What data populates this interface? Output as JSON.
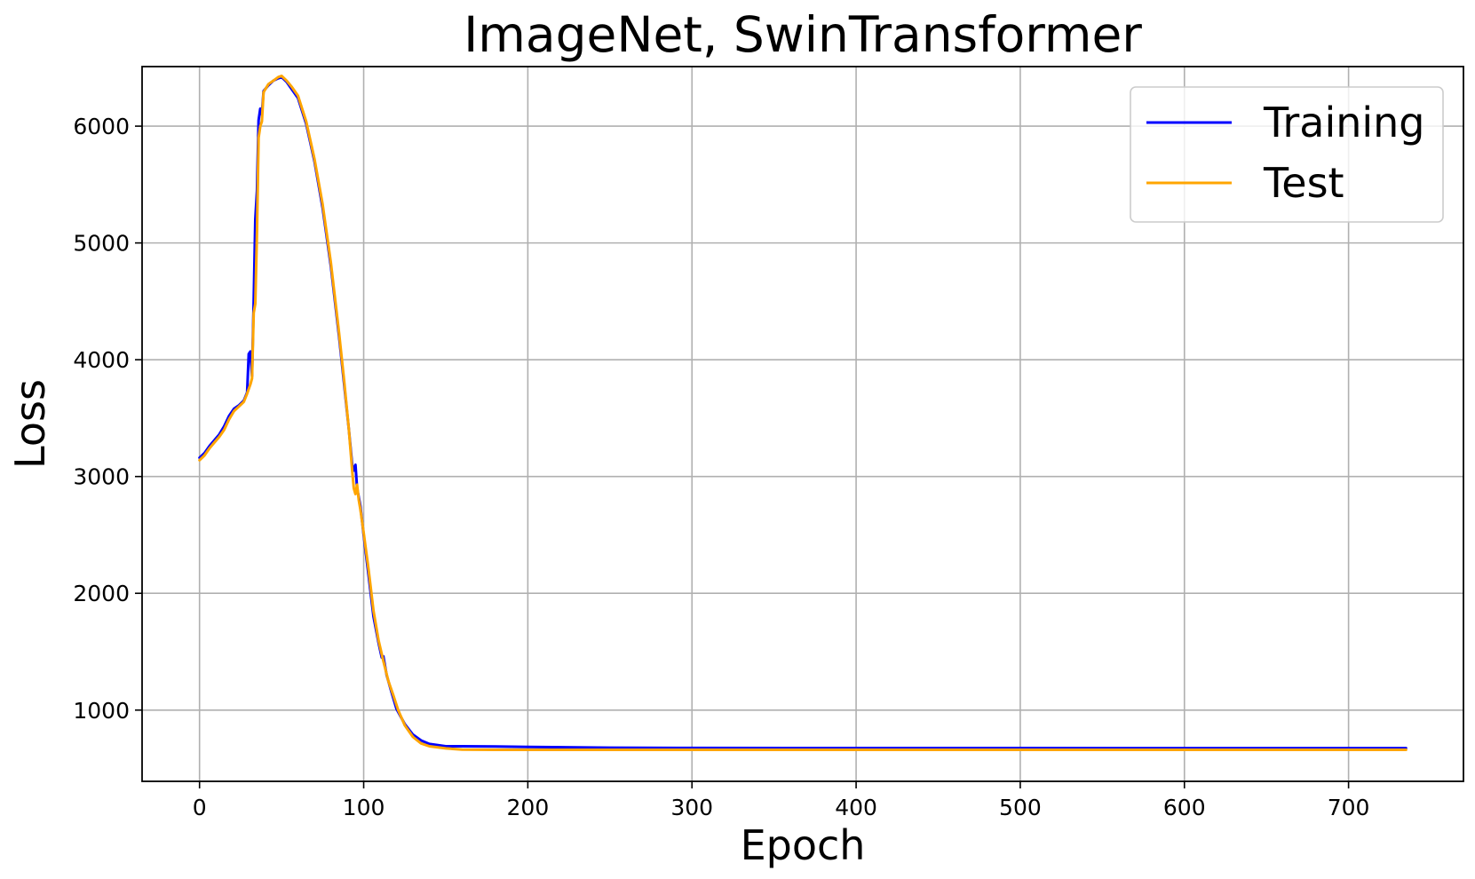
{
  "chart_data": {
    "type": "line",
    "title": "ImageNet, SwinTransformer",
    "xlabel": "Epoch",
    "ylabel": "Loss",
    "xlim": [
      -35,
      770
    ],
    "ylim": [
      390,
      6510
    ],
    "xticks": [
      0,
      100,
      200,
      300,
      400,
      500,
      600,
      700
    ],
    "yticks": [
      1000,
      2000,
      3000,
      4000,
      5000,
      6000
    ],
    "grid": true,
    "legend_position": "top-right",
    "series": [
      {
        "name": "Training",
        "color": "#0000ff",
        "points": [
          [
            0,
            3160
          ],
          [
            3,
            3200
          ],
          [
            6,
            3260
          ],
          [
            9,
            3310
          ],
          [
            12,
            3360
          ],
          [
            15,
            3430
          ],
          [
            18,
            3520
          ],
          [
            21,
            3580
          ],
          [
            24,
            3610
          ],
          [
            27,
            3650
          ],
          [
            29,
            3720
          ],
          [
            30,
            4050
          ],
          [
            31,
            4070
          ],
          [
            32,
            3860
          ],
          [
            33,
            4500
          ],
          [
            34,
            5200
          ],
          [
            35,
            5450
          ],
          [
            36,
            6050
          ],
          [
            37,
            6150
          ],
          [
            38,
            6100
          ],
          [
            39,
            6300
          ],
          [
            42,
            6350
          ],
          [
            45,
            6390
          ],
          [
            48,
            6410
          ],
          [
            50,
            6420
          ],
          [
            53,
            6380
          ],
          [
            56,
            6320
          ],
          [
            60,
            6240
          ],
          [
            65,
            6020
          ],
          [
            70,
            5700
          ],
          [
            75,
            5300
          ],
          [
            80,
            4800
          ],
          [
            85,
            4200
          ],
          [
            88,
            3800
          ],
          [
            91,
            3400
          ],
          [
            93,
            3100
          ],
          [
            94,
            3050
          ],
          [
            95,
            3100
          ],
          [
            96,
            2900
          ],
          [
            98,
            2750
          ],
          [
            100,
            2500
          ],
          [
            103,
            2150
          ],
          [
            106,
            1800
          ],
          [
            109,
            1580
          ],
          [
            111,
            1450
          ],
          [
            112,
            1460
          ],
          [
            114,
            1300
          ],
          [
            117,
            1150
          ],
          [
            120,
            1010
          ],
          [
            125,
            880
          ],
          [
            130,
            790
          ],
          [
            135,
            740
          ],
          [
            140,
            710
          ],
          [
            150,
            690
          ],
          [
            160,
            690
          ],
          [
            180,
            688
          ],
          [
            200,
            684
          ],
          [
            250,
            678
          ],
          [
            300,
            676
          ],
          [
            400,
            675
          ],
          [
            500,
            675
          ],
          [
            600,
            674
          ],
          [
            700,
            674
          ],
          [
            735,
            674
          ]
        ]
      },
      {
        "name": "Test",
        "color": "#ffa500",
        "points": [
          [
            0,
            3140
          ],
          [
            3,
            3180
          ],
          [
            6,
            3240
          ],
          [
            9,
            3290
          ],
          [
            12,
            3340
          ],
          [
            15,
            3400
          ],
          [
            18,
            3490
          ],
          [
            21,
            3560
          ],
          [
            24,
            3600
          ],
          [
            27,
            3640
          ],
          [
            29,
            3710
          ],
          [
            31,
            3790
          ],
          [
            32,
            3840
          ],
          [
            33,
            4400
          ],
          [
            34,
            4480
          ],
          [
            35,
            5100
          ],
          [
            36,
            5900
          ],
          [
            37,
            6000
          ],
          [
            38,
            6040
          ],
          [
            39,
            6290
          ],
          [
            42,
            6360
          ],
          [
            45,
            6390
          ],
          [
            48,
            6420
          ],
          [
            50,
            6430
          ],
          [
            53,
            6390
          ],
          [
            56,
            6340
          ],
          [
            60,
            6260
          ],
          [
            65,
            6040
          ],
          [
            70,
            5720
          ],
          [
            75,
            5330
          ],
          [
            80,
            4830
          ],
          [
            85,
            4230
          ],
          [
            88,
            3830
          ],
          [
            91,
            3400
          ],
          [
            93,
            3050
          ],
          [
            94,
            2900
          ],
          [
            95,
            2850
          ],
          [
            96,
            2930
          ],
          [
            97,
            2800
          ],
          [
            98,
            2720
          ],
          [
            100,
            2520
          ],
          [
            103,
            2200
          ],
          [
            106,
            1850
          ],
          [
            109,
            1600
          ],
          [
            112,
            1420
          ],
          [
            115,
            1250
          ],
          [
            118,
            1130
          ],
          [
            121,
            1000
          ],
          [
            125,
            870
          ],
          [
            130,
            770
          ],
          [
            135,
            715
          ],
          [
            140,
            690
          ],
          [
            150,
            672
          ],
          [
            160,
            662
          ],
          [
            180,
            660
          ],
          [
            200,
            660
          ],
          [
            300,
            660
          ],
          [
            400,
            660
          ],
          [
            500,
            660
          ],
          [
            600,
            660
          ],
          [
            700,
            660
          ],
          [
            735,
            660
          ]
        ]
      }
    ]
  }
}
